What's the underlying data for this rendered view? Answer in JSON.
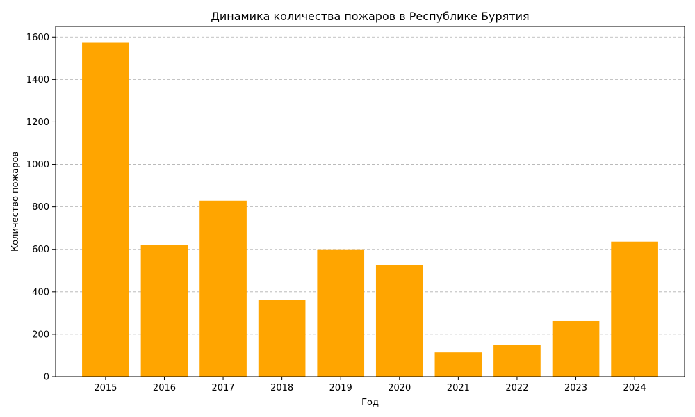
{
  "chart_data": {
    "type": "bar",
    "title": "Динамика количества пожаров в Республике Бурятия",
    "xlabel": "Год",
    "ylabel": "Количество пожаров",
    "categories": [
      "2015",
      "2016",
      "2017",
      "2018",
      "2019",
      "2020",
      "2021",
      "2022",
      "2023",
      "2024"
    ],
    "values": [
      1573,
      622,
      829,
      363,
      600,
      527,
      114,
      148,
      262,
      636
    ],
    "ylim": [
      0,
      1650
    ],
    "yticks": [
      0,
      200,
      400,
      600,
      800,
      1000,
      1200,
      1400,
      1600
    ],
    "bar_color": "#ffa500",
    "grid": "horizontal-dashed",
    "legend": "none"
  }
}
